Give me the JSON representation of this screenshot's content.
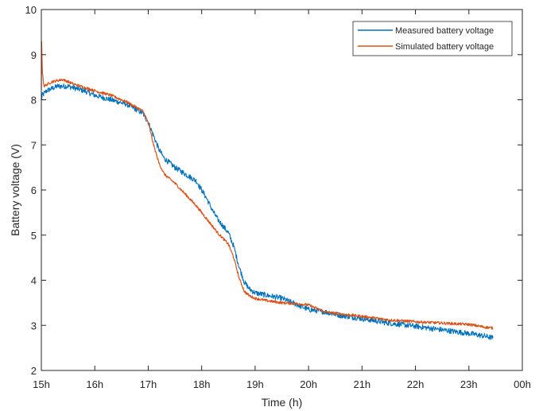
{
  "chart_data": {
    "type": "line",
    "xlabel": "Time (h)",
    "ylabel": "Battery voltage (V)",
    "xlim": [
      15,
      24
    ],
    "ylim": [
      2,
      10
    ],
    "x_ticks": [
      {
        "value": 15,
        "label": "15h"
      },
      {
        "value": 16,
        "label": "16h"
      },
      {
        "value": 17,
        "label": "17h"
      },
      {
        "value": 18,
        "label": "18h"
      },
      {
        "value": 19,
        "label": "19h"
      },
      {
        "value": 20,
        "label": "20h"
      },
      {
        "value": 21,
        "label": "21h"
      },
      {
        "value": 22,
        "label": "22h"
      },
      {
        "value": 23,
        "label": "23h"
      },
      {
        "value": 24,
        "label": "00h"
      }
    ],
    "y_ticks": [
      2,
      3,
      4,
      5,
      6,
      7,
      8,
      9,
      10
    ],
    "grid": false,
    "legend_position": "top-right",
    "series": [
      {
        "name": "Measured battery voltage",
        "color": "#0072BD",
        "noise": 0.06,
        "x": [
          15.0,
          15.02,
          15.1,
          15.3,
          15.5,
          15.8,
          16.0,
          16.3,
          16.6,
          16.9,
          17.0,
          17.1,
          17.2,
          17.3,
          17.5,
          17.7,
          17.9,
          18.0,
          18.1,
          18.2,
          18.3,
          18.4,
          18.5,
          18.6,
          18.7,
          18.8,
          18.9,
          19.0,
          19.2,
          19.5,
          19.8,
          20.0,
          20.3,
          20.6,
          21.0,
          21.5,
          22.0,
          22.5,
          23.0,
          23.3,
          23.45
        ],
        "y": [
          8.0,
          8.1,
          8.2,
          8.3,
          8.3,
          8.2,
          8.1,
          8.0,
          7.9,
          7.7,
          7.5,
          7.2,
          6.9,
          6.7,
          6.5,
          6.35,
          6.2,
          6.0,
          5.8,
          5.55,
          5.35,
          5.2,
          5.05,
          4.75,
          4.3,
          3.95,
          3.8,
          3.72,
          3.67,
          3.6,
          3.45,
          3.35,
          3.3,
          3.22,
          3.15,
          3.05,
          2.98,
          2.9,
          2.82,
          2.76,
          2.72
        ]
      },
      {
        "name": "Simulated battery voltage",
        "color": "#D95319",
        "noise": 0.03,
        "x": [
          15.0,
          15.005,
          15.02,
          15.05,
          15.2,
          15.4,
          15.6,
          16.0,
          16.3,
          16.6,
          16.9,
          17.0,
          17.1,
          17.2,
          17.3,
          17.5,
          17.7,
          17.9,
          18.1,
          18.3,
          18.5,
          18.6,
          18.7,
          18.8,
          18.9,
          19.0,
          19.2,
          19.5,
          19.8,
          20.0,
          20.3,
          20.6,
          21.0,
          21.5,
          22.0,
          22.5,
          23.0,
          23.3,
          23.45
        ],
        "y": [
          8.2,
          9.3,
          8.6,
          8.3,
          8.4,
          8.45,
          8.35,
          8.2,
          8.1,
          7.95,
          7.75,
          7.5,
          7.0,
          6.6,
          6.35,
          6.15,
          5.9,
          5.65,
          5.35,
          5.05,
          4.8,
          4.5,
          4.05,
          3.75,
          3.65,
          3.6,
          3.55,
          3.5,
          3.48,
          3.45,
          3.3,
          3.25,
          3.2,
          3.12,
          3.08,
          3.05,
          3.02,
          2.96,
          2.94
        ]
      }
    ]
  }
}
